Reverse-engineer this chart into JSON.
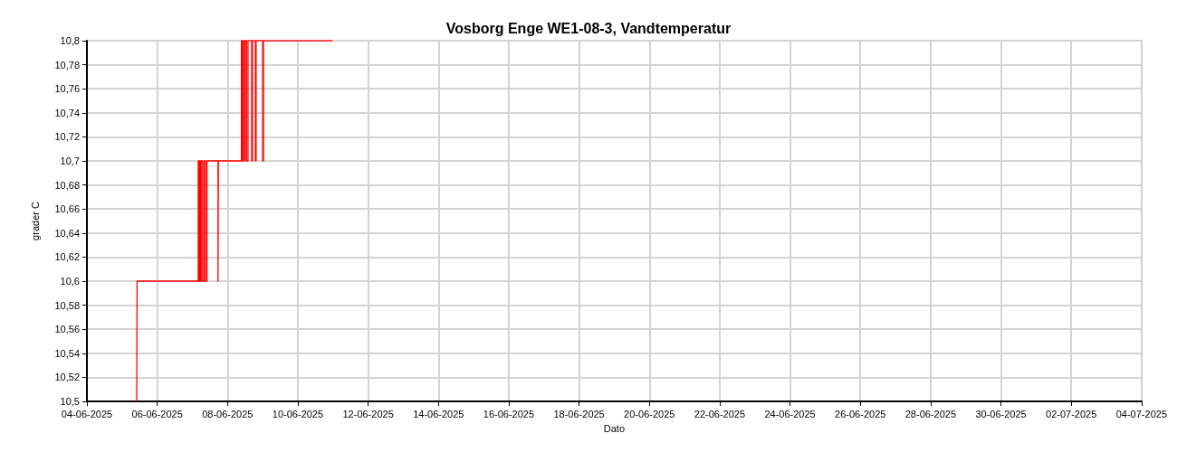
{
  "chart_data": {
    "type": "step",
    "title": "Vosborg Enge WE1-08-3, Vandtemperatur",
    "xlabel": "Dato",
    "ylabel": "grader C",
    "series": [
      {
        "color": "#ff0000",
        "x": [
          "2025-06-05T10:00",
          "2025-06-05T10:15",
          "2025-06-07T04:00",
          "2025-06-07T04:30",
          "2025-06-07T05:00",
          "2025-06-07T05:30",
          "2025-06-07T06:00",
          "2025-06-07T07:00",
          "2025-06-07T08:00",
          "2025-06-07T09:00",
          "2025-06-07T10:00",
          "2025-06-07T17:30",
          "2025-06-07T17:45",
          "2025-06-08T09:30",
          "2025-06-08T10:00",
          "2025-06-08T10:30",
          "2025-06-08T11:30",
          "2025-06-08T12:00",
          "2025-06-08T13:00",
          "2025-06-08T14:00",
          "2025-06-08T16:30",
          "2025-06-08T17:00",
          "2025-06-08T19:00",
          "2025-06-08T19:30",
          "2025-06-09T00:00",
          "2025-06-09T00:30",
          "2025-06-10T23:45"
        ],
        "values": [
          10.5,
          10.6,
          10.7,
          10.6,
          10.7,
          10.6,
          10.7,
          10.6,
          10.7,
          10.6,
          10.7,
          10.6,
          10.7,
          10.8,
          10.7,
          10.8,
          10.7,
          10.8,
          10.7,
          10.8,
          10.7,
          10.8,
          10.7,
          10.8,
          10.7,
          10.8,
          10.8
        ]
      }
    ],
    "xlim": [
      "2025-06-04",
      "2025-07-04"
    ],
    "xticks": [
      {
        "value": "2025-06-04",
        "label": "04-06-2025"
      },
      {
        "value": "2025-06-06",
        "label": "06-06-2025"
      },
      {
        "value": "2025-06-08",
        "label": "08-06-2025"
      },
      {
        "value": "2025-06-10",
        "label": "10-06-2025"
      },
      {
        "value": "2025-06-12",
        "label": "12-06-2025"
      },
      {
        "value": "2025-06-14",
        "label": "14-06-2025"
      },
      {
        "value": "2025-06-16",
        "label": "16-06-2025"
      },
      {
        "value": "2025-06-18",
        "label": "18-06-2025"
      },
      {
        "value": "2025-06-20",
        "label": "20-06-2025"
      },
      {
        "value": "2025-06-22",
        "label": "22-06-2025"
      },
      {
        "value": "2025-06-24",
        "label": "24-06-2025"
      },
      {
        "value": "2025-06-26",
        "label": "26-06-2025"
      },
      {
        "value": "2025-06-28",
        "label": "28-06-2025"
      },
      {
        "value": "2025-06-30",
        "label": "30-06-2025"
      },
      {
        "value": "2025-07-02",
        "label": "02-07-2025"
      },
      {
        "value": "2025-07-04",
        "label": "04-07-2025"
      }
    ],
    "ylim": [
      10.5,
      10.8
    ],
    "yticks": [
      {
        "value": 10.5,
        "label": "10,5"
      },
      {
        "value": 10.52,
        "label": "10,52"
      },
      {
        "value": 10.54,
        "label": "10,54"
      },
      {
        "value": 10.56,
        "label": "10,56"
      },
      {
        "value": 10.58,
        "label": "10,58"
      },
      {
        "value": 10.6,
        "label": "10,6"
      },
      {
        "value": 10.62,
        "label": "10,62"
      },
      {
        "value": 10.64,
        "label": "10,64"
      },
      {
        "value": 10.66,
        "label": "10,66"
      },
      {
        "value": 10.68,
        "label": "10,68"
      },
      {
        "value": 10.7,
        "label": "10,7"
      },
      {
        "value": 10.72,
        "label": "10,72"
      },
      {
        "value": 10.74,
        "label": "10,74"
      },
      {
        "value": 10.76,
        "label": "10,76"
      },
      {
        "value": 10.78,
        "label": "10,78"
      },
      {
        "value": 10.8,
        "label": "10,8"
      }
    ],
    "grid": true,
    "marker": "none",
    "line_style": "solid"
  }
}
